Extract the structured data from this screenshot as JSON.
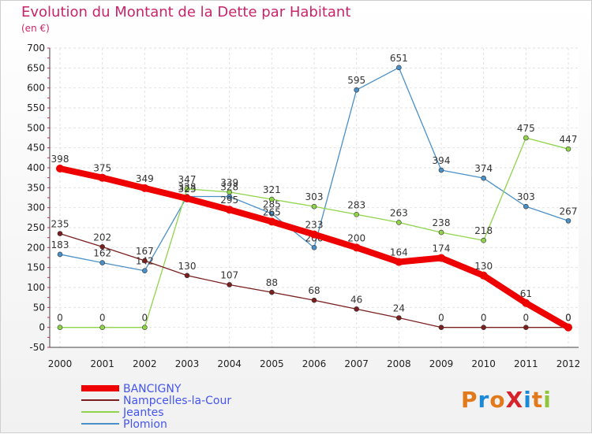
{
  "chart_data": {
    "type": "line",
    "title": "Evolution du Montant de la Dette par Habitant",
    "subtitle": "(en €)",
    "xlabel": "",
    "ylabel": "",
    "ylim": [
      -50,
      700
    ],
    "yticks": [
      -50,
      0,
      50,
      100,
      150,
      200,
      250,
      300,
      350,
      400,
      450,
      500,
      550,
      600,
      650,
      700
    ],
    "categories": [
      "2000",
      "2001",
      "2002",
      "2003",
      "2004",
      "2005",
      "2006",
      "2007",
      "2008",
      "2009",
      "2010",
      "2011",
      "2012"
    ],
    "grid": true,
    "legend_position": "bottom-left",
    "series": [
      {
        "name": "Plomion",
        "color": "#4a90c8",
        "values": [
          183,
          162,
          142,
          328,
          328,
          285,
          200,
          595,
          651,
          394,
          374,
          303,
          267
        ]
      },
      {
        "name": "Jeantes",
        "color": "#8fd44a",
        "values": [
          0,
          0,
          0,
          347,
          339,
          321,
          303,
          283,
          263,
          238,
          218,
          475,
          447
        ]
      },
      {
        "name": "Nampcelles-la-Cour",
        "color": "#7a1e1e",
        "values": [
          235,
          202,
          167,
          130,
          107,
          88,
          68,
          46,
          24,
          0,
          0,
          0,
          0
        ]
      },
      {
        "name": "BANCIGNY",
        "color": "#ee0000",
        "values": [
          398,
          375,
          349,
          323,
          295,
          265,
          233,
          200,
          164,
          174,
          130,
          61,
          0
        ]
      }
    ]
  },
  "logo": {
    "text": "ProXiti"
  }
}
